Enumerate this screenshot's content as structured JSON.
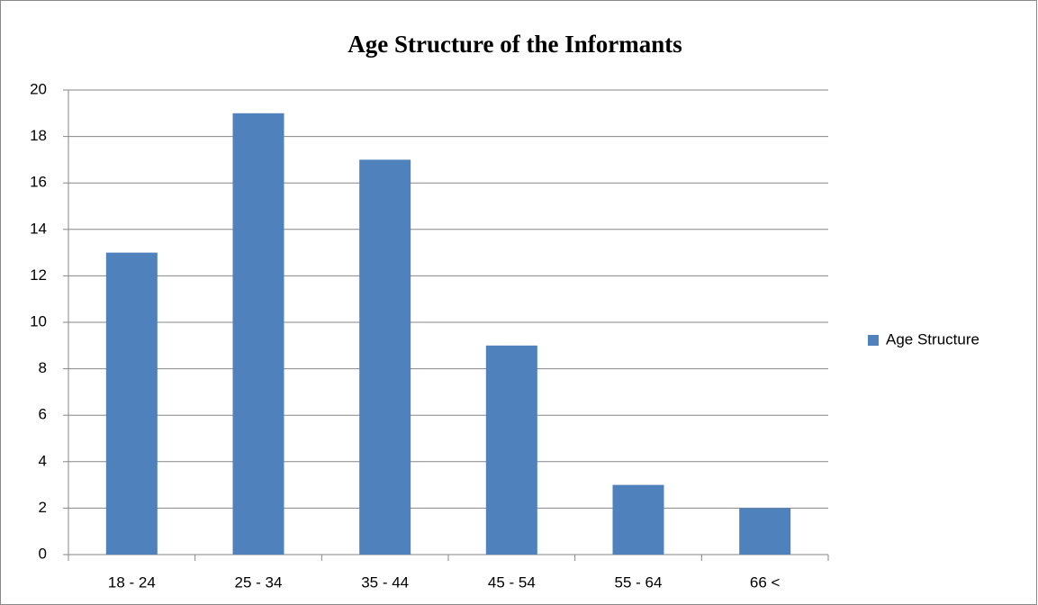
{
  "chart_data": {
    "type": "bar",
    "title": "Age Structure of the Informants",
    "categories": [
      "18 - 24",
      "25 - 34",
      "35 - 44",
      "45 - 54",
      "55 - 64",
      "66 <"
    ],
    "series": [
      {
        "name": "Age Structure",
        "color": "#4f81bd",
        "values": [
          13,
          19,
          17,
          9,
          3,
          2
        ]
      }
    ],
    "ylim": [
      0,
      20
    ],
    "yticks": [
      0,
      2,
      4,
      6,
      8,
      10,
      12,
      14,
      16,
      18,
      20
    ],
    "grid": true,
    "legend": "right"
  }
}
